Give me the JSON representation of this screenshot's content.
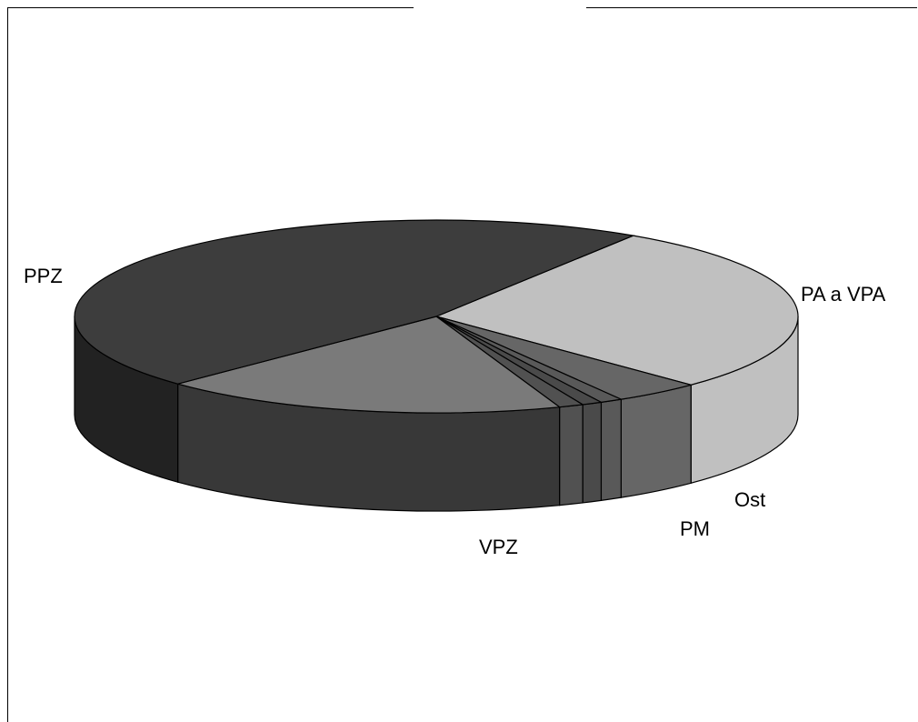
{
  "chart_data": {
    "type": "pie",
    "style": "3d",
    "categories": [
      "PA a VPA",
      "Ost",
      "PM",
      "",
      "",
      "VPZ",
      "PPZ"
    ],
    "values": [
      28.4,
      3.9,
      1.0,
      0.9,
      1.1,
      18.2,
      46.5
    ],
    "colors": [
      "#c0c0c0",
      "#666666",
      "#595959",
      "#4a4a4a",
      "#515151",
      "#7a7a7a",
      "#3d3d3d"
    ],
    "side_colors": [
      "#c0c0c0",
      "#666666",
      "#595959",
      "#4a4a4a",
      "#515151",
      "#383838",
      "#222222"
    ],
    "labels": [
      "PA a VPA",
      "Ost",
      "PM",
      "VPZ",
      "PPZ"
    ],
    "legend": "none",
    "grid": false
  }
}
